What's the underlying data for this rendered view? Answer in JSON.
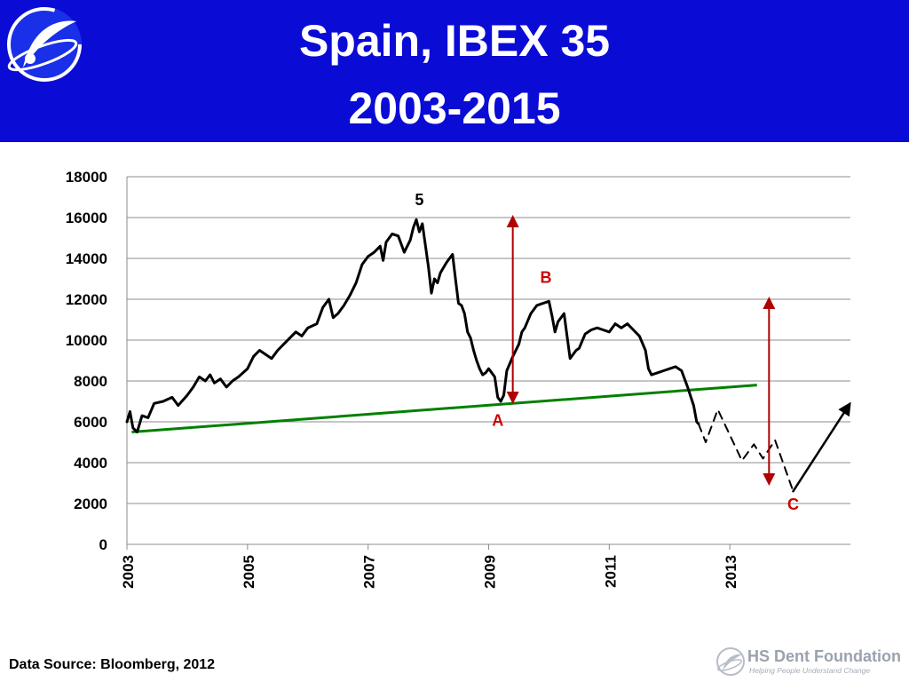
{
  "header": {
    "title_line1": "Spain, IBEX 35",
    "title_line2": "2003-2015",
    "logo_icon": "hs-dent-swoosh-icon",
    "bg_color": "#0b0bd6"
  },
  "chart_data": {
    "type": "line",
    "ylim": [
      0,
      18000
    ],
    "yticks": [
      "0",
      "2000",
      "4000",
      "6000",
      "8000",
      "10000",
      "12000",
      "14000",
      "16000",
      "18000"
    ],
    "xlim": [
      2003.0,
      2015.0
    ],
    "xticks": [
      "2003",
      "2005",
      "2007",
      "2009",
      "2011",
      "2013"
    ],
    "grid": true,
    "series": [
      {
        "color": "#000000",
        "points": [
          [
            2003.0,
            6000
          ],
          [
            2003.05,
            6500
          ],
          [
            2003.1,
            5700
          ],
          [
            2003.17,
            5500
          ],
          [
            2003.25,
            6300
          ],
          [
            2003.35,
            6200
          ],
          [
            2003.45,
            6900
          ],
          [
            2003.6,
            7000
          ],
          [
            2003.75,
            7200
          ],
          [
            2003.85,
            6800
          ],
          [
            2004.0,
            7300
          ],
          [
            2004.1,
            7700
          ],
          [
            2004.2,
            8200
          ],
          [
            2004.3,
            8000
          ],
          [
            2004.38,
            8300
          ],
          [
            2004.45,
            7900
          ],
          [
            2004.55,
            8100
          ],
          [
            2004.65,
            7700
          ],
          [
            2004.75,
            8000
          ],
          [
            2004.85,
            8200
          ],
          [
            2005.0,
            8600
          ],
          [
            2005.1,
            9200
          ],
          [
            2005.2,
            9500
          ],
          [
            2005.3,
            9300
          ],
          [
            2005.4,
            9100
          ],
          [
            2005.5,
            9500
          ],
          [
            2005.6,
            9800
          ],
          [
            2005.7,
            10100
          ],
          [
            2005.8,
            10400
          ],
          [
            2005.9,
            10200
          ],
          [
            2006.0,
            10600
          ],
          [
            2006.15,
            10800
          ],
          [
            2006.25,
            11600
          ],
          [
            2006.35,
            12000
          ],
          [
            2006.42,
            11100
          ],
          [
            2006.5,
            11300
          ],
          [
            2006.6,
            11700
          ],
          [
            2006.7,
            12200
          ],
          [
            2006.8,
            12800
          ],
          [
            2006.9,
            13700
          ],
          [
            2007.0,
            14100
          ],
          [
            2007.1,
            14300
          ],
          [
            2007.2,
            14600
          ],
          [
            2007.25,
            13900
          ],
          [
            2007.3,
            14800
          ],
          [
            2007.4,
            15200
          ],
          [
            2007.5,
            15100
          ],
          [
            2007.6,
            14300
          ],
          [
            2007.7,
            14900
          ],
          [
            2007.75,
            15500
          ],
          [
            2007.8,
            15900
          ],
          [
            2007.85,
            15300
          ],
          [
            2007.9,
            15700
          ],
          [
            2008.0,
            13600
          ],
          [
            2008.05,
            12300
          ],
          [
            2008.1,
            13000
          ],
          [
            2008.15,
            12800
          ],
          [
            2008.2,
            13300
          ],
          [
            2008.3,
            13800
          ],
          [
            2008.4,
            14200
          ],
          [
            2008.45,
            13000
          ],
          [
            2008.5,
            11800
          ],
          [
            2008.55,
            11700
          ],
          [
            2008.6,
            11300
          ],
          [
            2008.65,
            10400
          ],
          [
            2008.7,
            10100
          ],
          [
            2008.75,
            9500
          ],
          [
            2008.8,
            9000
          ],
          [
            2008.85,
            8600
          ],
          [
            2008.9,
            8300
          ],
          [
            2008.95,
            8400
          ],
          [
            2009.0,
            8600
          ],
          [
            2009.1,
            8200
          ],
          [
            2009.15,
            7200
          ],
          [
            2009.2,
            7000
          ],
          [
            2009.25,
            7300
          ],
          [
            2009.3,
            8500
          ],
          [
            2009.4,
            9200
          ],
          [
            2009.5,
            9800
          ],
          [
            2009.55,
            10400
          ],
          [
            2009.6,
            10600
          ],
          [
            2009.7,
            11300
          ],
          [
            2009.8,
            11700
          ],
          [
            2009.9,
            11800
          ],
          [
            2010.0,
            11900
          ],
          [
            2010.05,
            11200
          ],
          [
            2010.1,
            10400
          ],
          [
            2010.15,
            10900
          ],
          [
            2010.25,
            11300
          ],
          [
            2010.35,
            9100
          ],
          [
            2010.45,
            9500
          ],
          [
            2010.5,
            9600
          ],
          [
            2010.6,
            10300
          ],
          [
            2010.7,
            10500
          ],
          [
            2010.8,
            10600
          ],
          [
            2010.9,
            10500
          ],
          [
            2011.0,
            10400
          ],
          [
            2011.1,
            10800
          ],
          [
            2011.2,
            10600
          ],
          [
            2011.3,
            10800
          ],
          [
            2011.4,
            10500
          ],
          [
            2011.5,
            10200
          ],
          [
            2011.6,
            9500
          ],
          [
            2011.65,
            8600
          ],
          [
            2011.7,
            8300
          ],
          [
            2011.8,
            8400
          ],
          [
            2011.9,
            8500
          ],
          [
            2012.0,
            8600
          ],
          [
            2012.1,
            8700
          ],
          [
            2012.2,
            8500
          ],
          [
            2012.3,
            7700
          ],
          [
            2012.4,
            6800
          ],
          [
            2012.45,
            6000
          ],
          [
            2012.48,
            5900
          ]
        ]
      },
      {
        "color": "#000000",
        "style": "dashed",
        "points": [
          [
            2012.48,
            5900
          ],
          [
            2012.6,
            5000
          ],
          [
            2012.8,
            6600
          ],
          [
            2013.2,
            4100
          ],
          [
            2013.4,
            4900
          ],
          [
            2013.55,
            4200
          ],
          [
            2013.75,
            5100
          ],
          [
            2014.05,
            2600
          ]
        ]
      },
      {
        "color": "#000000",
        "style": "arrow",
        "points": [
          [
            2014.05,
            2600
          ],
          [
            2014.95,
            6700
          ]
        ]
      }
    ],
    "trendline": {
      "color": "#008000",
      "points": [
        [
          2003.08,
          5500
        ],
        [
          2013.45,
          7800
        ]
      ]
    },
    "range_arrows": [
      {
        "x": 2009.4,
        "y_low": 7000,
        "y_high": 16000,
        "color": "#b00000"
      },
      {
        "x": 2013.65,
        "y_low": 3000,
        "y_high": 12000,
        "color": "#b00000"
      }
    ],
    "annotations": [
      {
        "text": "5",
        "x": 2007.85,
        "y": 16600,
        "color": "#000000"
      },
      {
        "text": "A",
        "x": 2009.15,
        "y": 5800,
        "color": "#cc0000"
      },
      {
        "text": "B",
        "x": 2009.95,
        "y": 12800,
        "color": "#cc0000"
      },
      {
        "text": "C",
        "x": 2014.05,
        "y": 1700,
        "color": "#cc0000"
      }
    ]
  },
  "footer": {
    "source": "Data Source: Bloomberg, 2012",
    "brand_name": "HS Dent Foundation",
    "brand_tagline": "Helping People Understand Change",
    "brand_icon": "hs-dent-swoosh-icon"
  }
}
